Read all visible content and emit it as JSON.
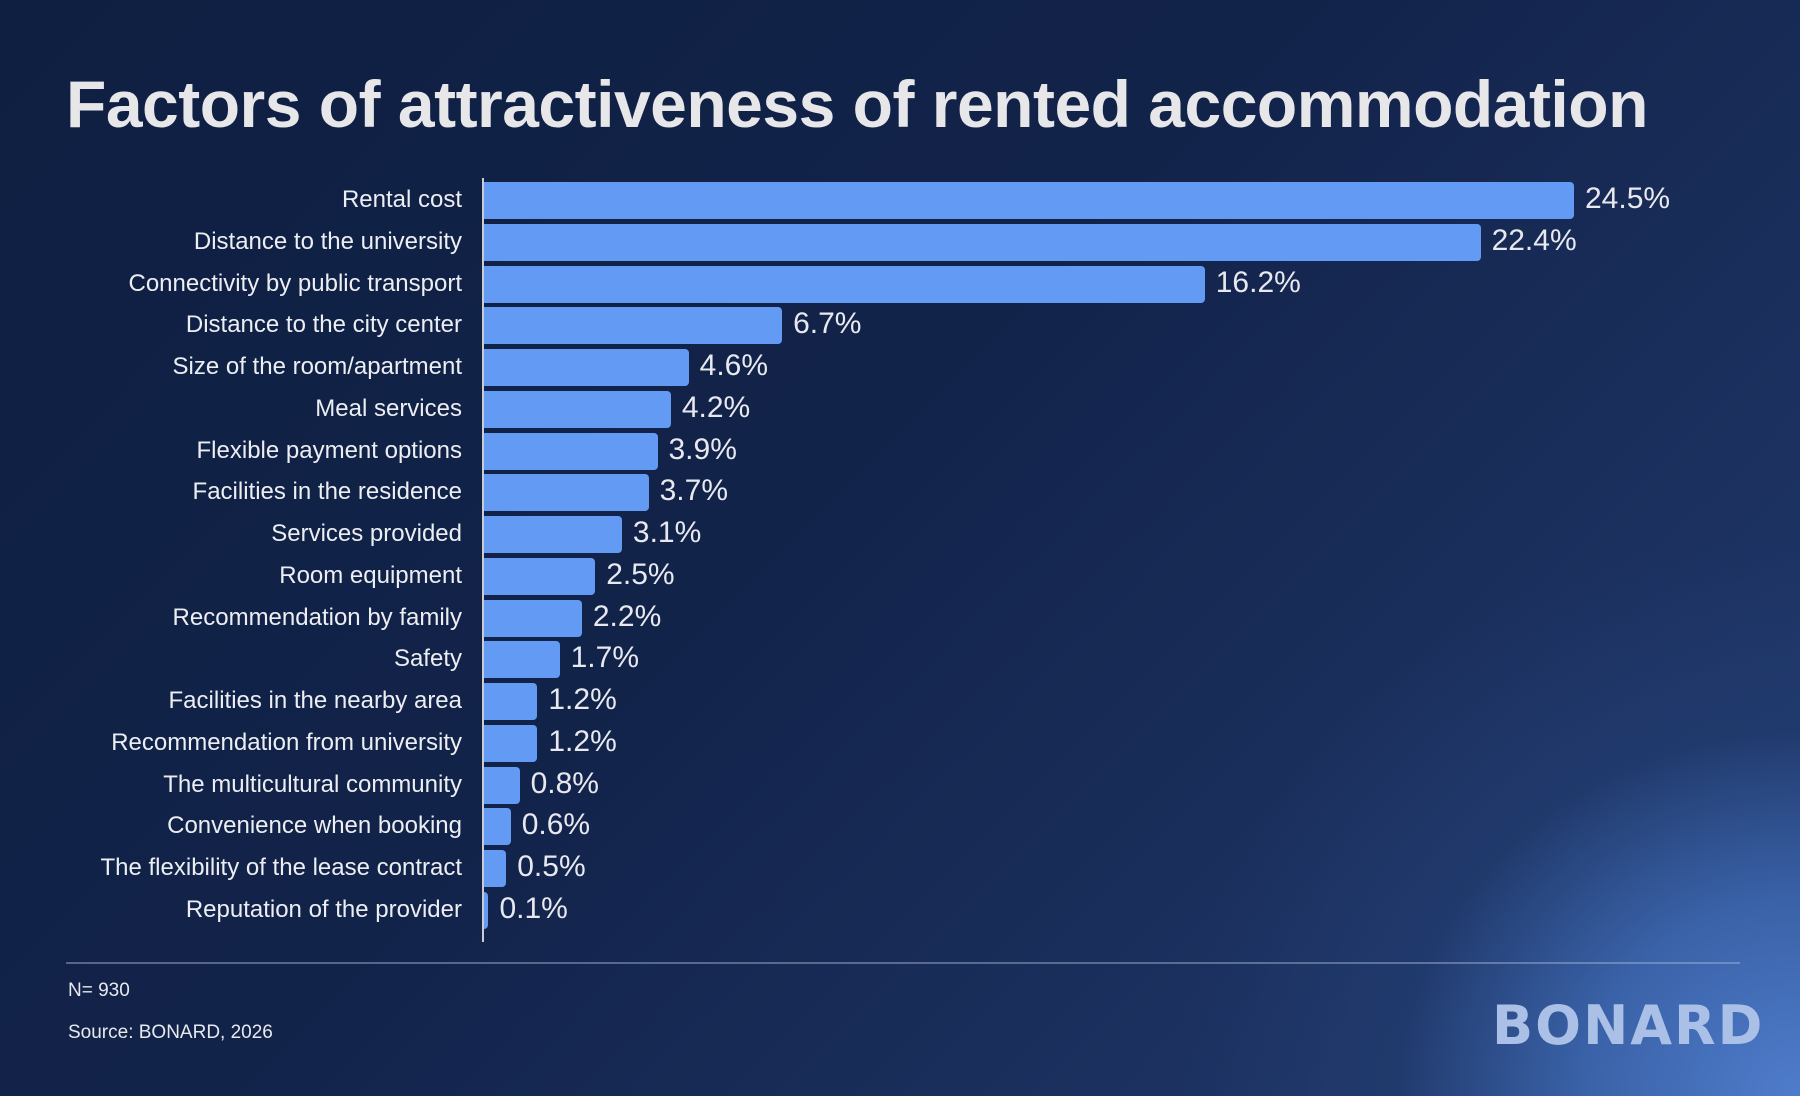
{
  "title": "Factors of attractiveness of rented accommodation",
  "footer": {
    "sample": "N= 930",
    "source": "Source: BONARD, 2026",
    "logo": "BONARD"
  },
  "colors": {
    "bar": "#639af4",
    "background_dark": "#0f1f42",
    "background_light": "#4f7ccb",
    "text": "#e8e9ee",
    "logo": "#aac0e6"
  },
  "chart_data": {
    "type": "bar",
    "orientation": "horizontal",
    "title": "Factors of attractiveness of rented accommodation",
    "xlabel": "",
    "ylabel": "",
    "unit": "%",
    "grid": false,
    "legend": null,
    "xlim": [
      0,
      24.5
    ],
    "categories": [
      "Rental cost",
      "Distance to the university",
      "Connectivity by public transport",
      "Distance to the city center",
      "Size of the room/apartment",
      "Meal services",
      "Flexible payment options",
      "Facilities in the residence",
      "Services provided",
      "Room equipment",
      "Recommendation by family",
      "Safety",
      "Facilities in the nearby area",
      "Recommendation from university",
      "The multicultural community",
      "Convenience when booking",
      "The flexibility of the lease contract",
      "Reputation of the provider"
    ],
    "values": [
      24.5,
      22.4,
      16.2,
      6.7,
      4.6,
      4.2,
      3.9,
      3.7,
      3.1,
      2.5,
      2.2,
      1.7,
      1.2,
      1.2,
      0.8,
      0.6,
      0.5,
      0.1
    ],
    "value_labels": [
      "24.5%",
      "22.4%",
      "16.2%",
      "6.7%",
      "4.6%",
      "4.2%",
      "3.9%",
      "3.7%",
      "3.1%",
      "2.5%",
      "2.2%",
      "1.7%",
      "1.2%",
      "1.2%",
      "0.8%",
      "0.6%",
      "0.5%",
      "0.1%"
    ],
    "annotations": [
      "N= 930",
      "Source: BONARD, 2026"
    ]
  }
}
